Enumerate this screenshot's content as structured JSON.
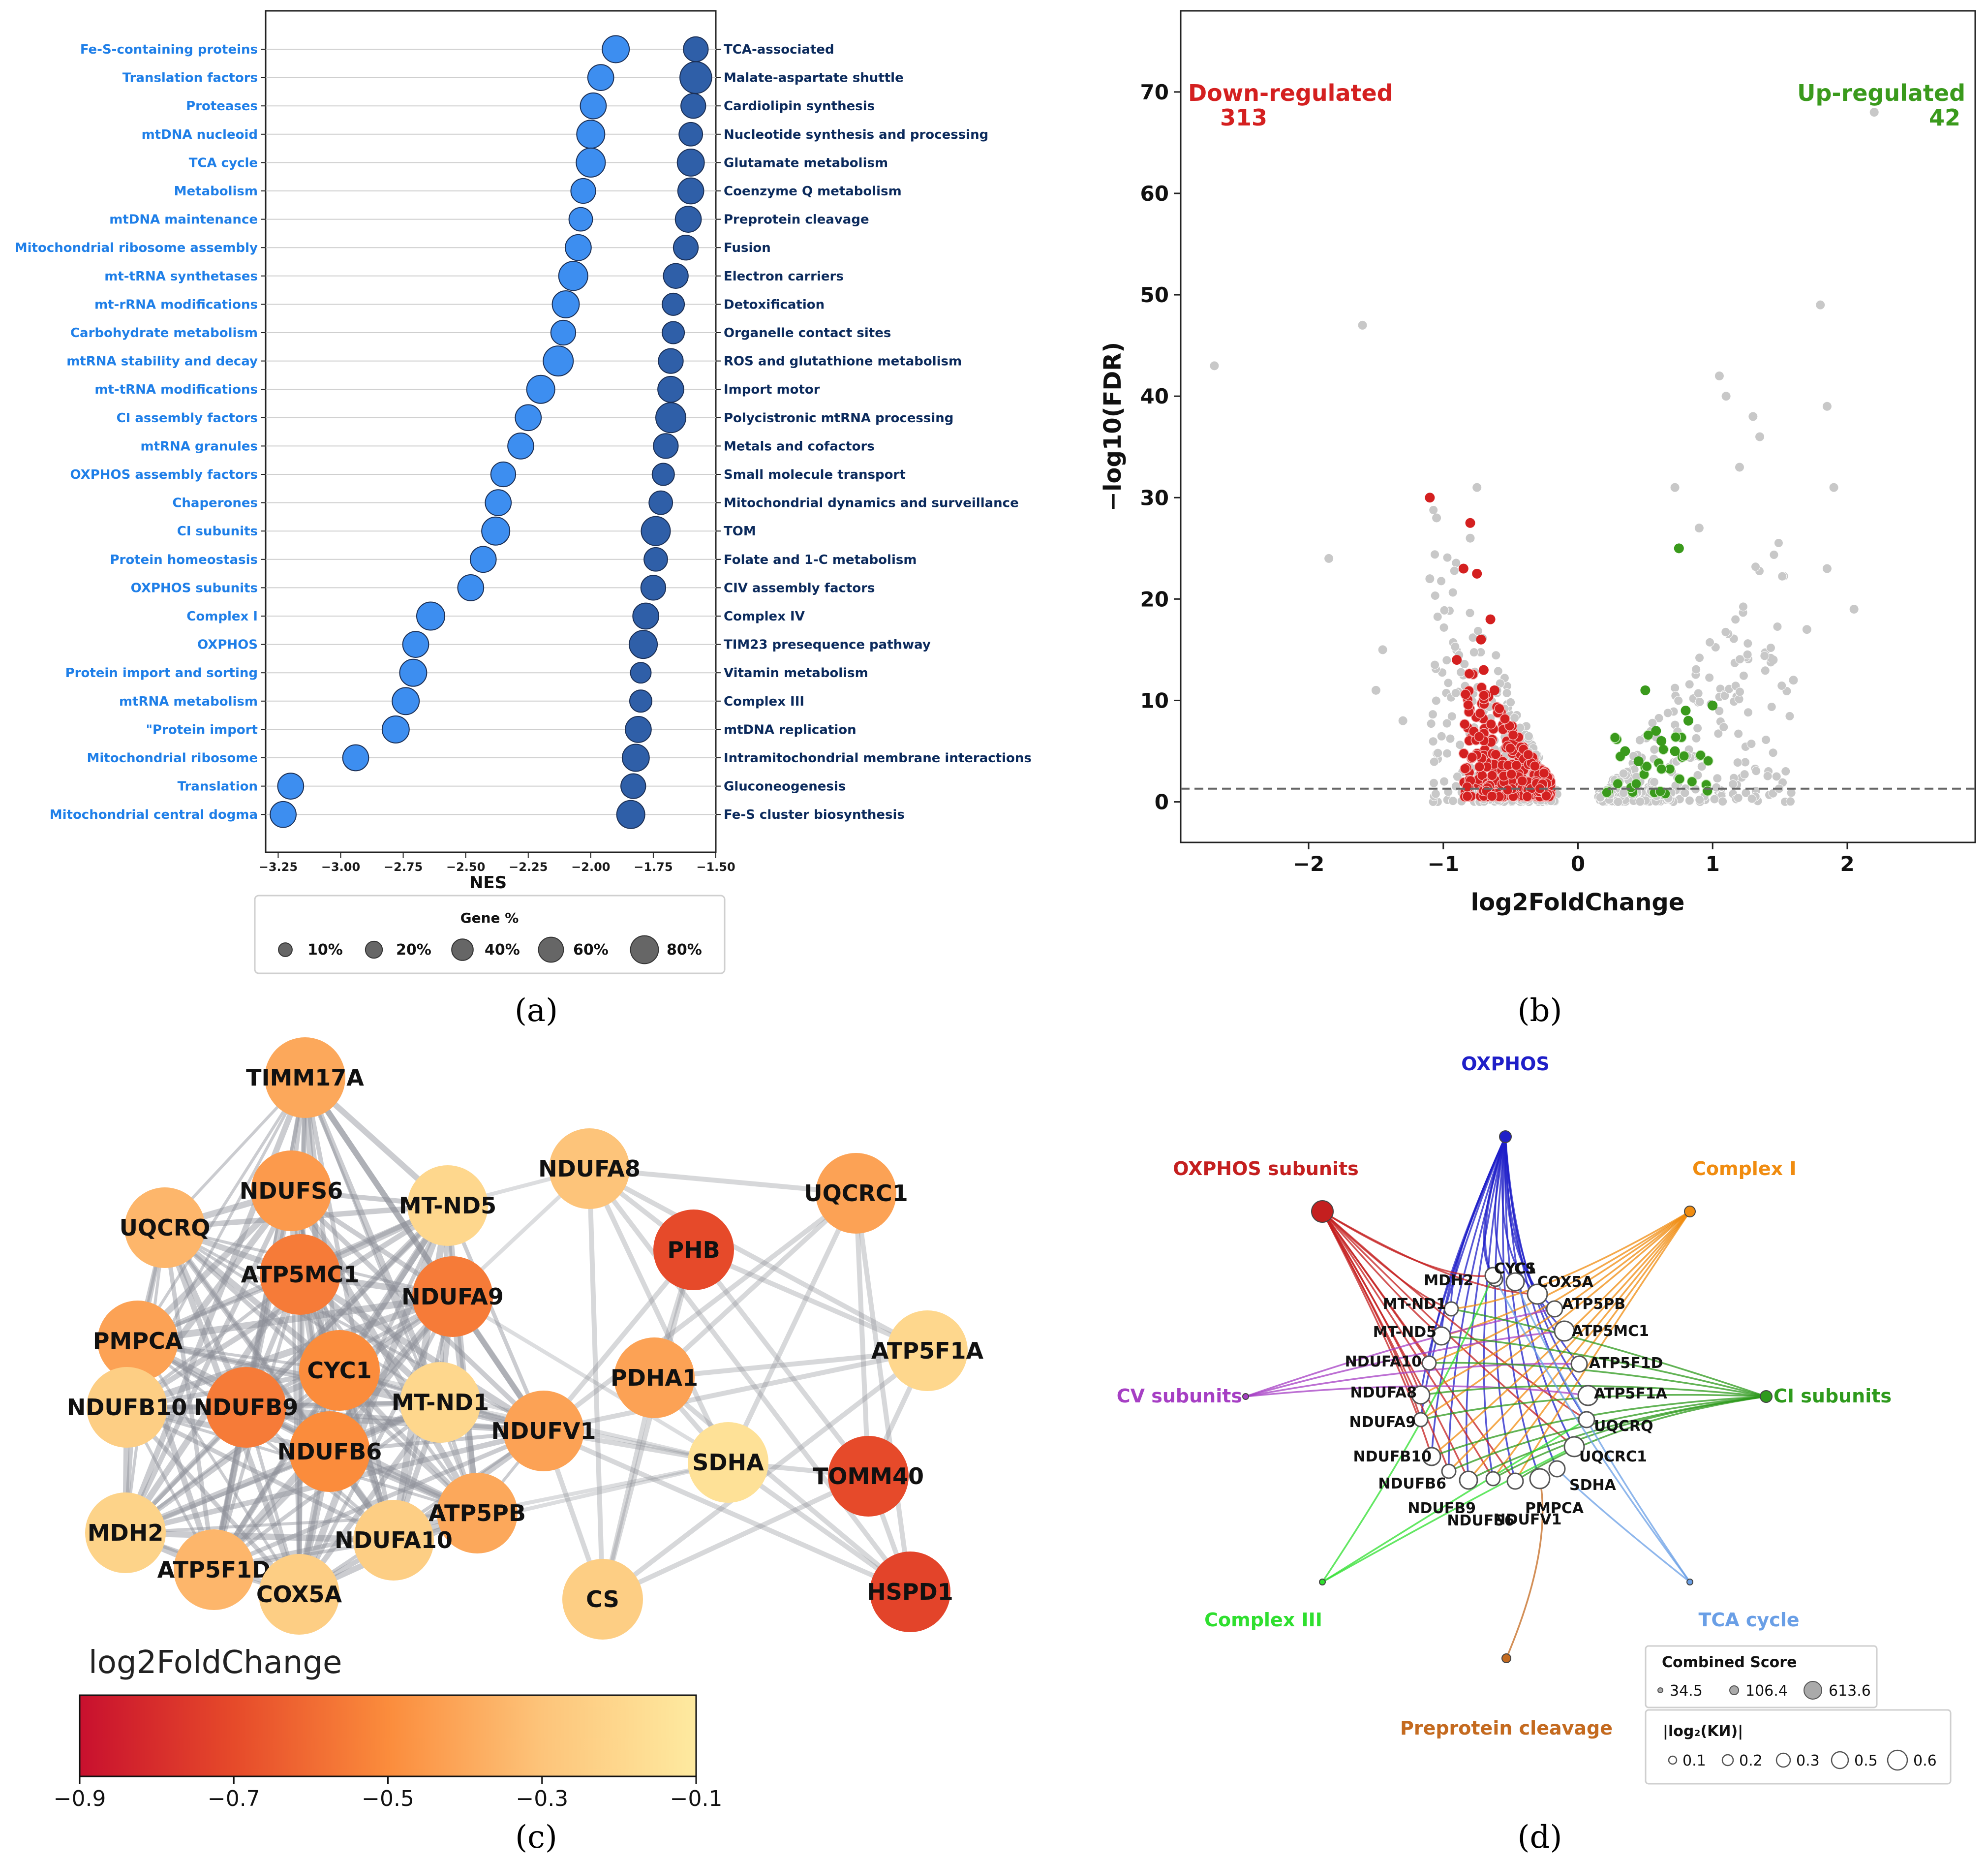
{
  "panel_labels": [
    "(a)",
    "(b)",
    "(c)",
    "(d)"
  ],
  "chart_data": [
    {
      "panel": "a",
      "type": "scatter",
      "xlabel": "NES",
      "xlim": [
        -3.3,
        -1.5
      ],
      "xticks": [
        "−3.25",
        "−3.00",
        "−2.75",
        "−2.50",
        "−2.25",
        "−2.00",
        "−1.75",
        "−1.50"
      ],
      "xtick_values": [
        -3.25,
        -3.0,
        -2.75,
        -2.5,
        -2.25,
        -2.0,
        -1.75,
        -1.5
      ],
      "size_legend": {
        "title": "Gene %",
        "labels": [
          "10%",
          "20%",
          "40%",
          "60%",
          "80%"
        ],
        "values": [
          10,
          20,
          40,
          60,
          80
        ]
      },
      "series": [
        {
          "side": "left",
          "color": "#3d8ef0",
          "labels": [
            "Fe-S-containing proteins",
            "Translation factors",
            "Proteases",
            "mtDNA nucleoid",
            "TCA cycle",
            "Metabolism",
            "mtDNA maintenance",
            "Mitochondrial ribosome assembly",
            "mt-tRNA synthetases",
            "mt-rRNA modifications",
            "Carbohydrate metabolism",
            "mtRNA stability and decay",
            "mt-tRNA modifications",
            "CI assembly factors",
            "mtRNA granules",
            "OXPHOS assembly factors",
            "Chaperones",
            "CI subunits",
            "Protein homeostasis",
            "OXPHOS subunits",
            "Complex I",
            "OXPHOS",
            "Protein import and sorting",
            "mtRNA metabolism",
            "\"Protein import",
            "Mitochondrial ribosome",
            "Translation",
            "Mitochondrial central dogma"
          ],
          "nes": [
            -1.9,
            -1.96,
            -1.99,
            -2.0,
            -2.0,
            -2.03,
            -2.04,
            -2.05,
            -2.07,
            -2.1,
            -2.11,
            -2.13,
            -2.2,
            -2.25,
            -2.28,
            -2.35,
            -2.37,
            -2.38,
            -2.43,
            -2.48,
            -2.64,
            -2.7,
            -2.71,
            -2.74,
            -2.78,
            -2.94,
            -3.2,
            -3.23
          ],
          "gene_pct": [
            45,
            40,
            40,
            50,
            55,
            35,
            30,
            40,
            55,
            45,
            35,
            60,
            50,
            40,
            40,
            35,
            40,
            50,
            40,
            40,
            50,
            40,
            45,
            45,
            45,
            40,
            40,
            40
          ]
        },
        {
          "side": "right",
          "color": "#2f5fa8",
          "labels": [
            "TCA-associated",
            "Malate-aspartate shuttle",
            "Cardiolipin synthesis",
            "Nucleotide synthesis and processing",
            "Glutamate metabolism",
            "Coenzyme Q metabolism",
            "Preprotein cleavage",
            "Fusion",
            "Electron carriers",
            "Detoxification",
            "Organelle contact sites",
            "ROS and glutathione metabolism",
            "Import motor",
            "Polycistronic mtRNA processing",
            "Metals and cofactors",
            "Small molecule transport",
            "Mitochondrial dynamics and surveillance",
            "TOM",
            "Folate and 1-C metabolism",
            "CIV assembly factors",
            "Complex IV",
            "TIM23 presequence pathway",
            "Vitamin metabolism",
            "Complex III",
            "mtDNA replication",
            "Intramitochondrial membrane interactions",
            "Gluconeogenesis",
            "Fe-S cluster biosynthesis"
          ],
          "nes": [
            -1.58,
            -1.58,
            -1.59,
            -1.6,
            -1.6,
            -1.6,
            -1.61,
            -1.62,
            -1.66,
            -1.67,
            -1.67,
            -1.68,
            -1.68,
            -1.68,
            -1.7,
            -1.71,
            -1.72,
            -1.74,
            -1.74,
            -1.75,
            -1.78,
            -1.79,
            -1.8,
            -1.8,
            -1.81,
            -1.82,
            -1.83,
            -1.84
          ],
          "gene_pct": [
            35,
            70,
            35,
            30,
            45,
            40,
            40,
            35,
            35,
            25,
            25,
            35,
            40,
            60,
            35,
            25,
            30,
            55,
            30,
            35,
            40,
            50,
            20,
            25,
            40,
            45,
            35,
            50
          ]
        }
      ]
    },
    {
      "panel": "b",
      "type": "scatter",
      "xlabel": "log2FoldChange",
      "ylabel": "−log10(FDR)",
      "xlim": [
        -2.95,
        2.95
      ],
      "ylim": [
        -4,
        78
      ],
      "xticks": [
        "−2",
        "−1",
        "0",
        "1",
        "2"
      ],
      "xtick_values": [
        -2,
        -1,
        0,
        1,
        2
      ],
      "yticks": [
        "0",
        "10",
        "20",
        "30",
        "40",
        "50",
        "60",
        "70"
      ],
      "ytick_values": [
        0,
        10,
        20,
        30,
        40,
        50,
        60,
        70
      ],
      "threshold_y": 1.3,
      "annotations": {
        "down_label": "Down-regulated",
        "down_count": "313",
        "up_label": "Up-regulated",
        "up_count": "42"
      },
      "colors": {
        "down": "#d42020",
        "up": "#3a9a1c",
        "ns": "#c8c8c8"
      },
      "grey_outliers": {
        "x": [
          -2.7,
          -1.6,
          -1.85,
          -0.75,
          -1.05,
          -1.1,
          -1.45,
          1.8,
          1.85,
          1.9,
          1.85,
          2.05,
          2.2,
          1.3,
          1.35,
          1.05,
          1.1,
          1.2,
          1.7,
          1.6,
          1.45,
          -1.5,
          -1.3,
          -0.8,
          0.72,
          0.9
        ],
        "y": [
          43,
          47,
          24,
          31,
          28,
          22,
          15,
          49,
          39,
          31,
          23,
          19,
          68,
          38,
          36,
          42,
          40,
          33,
          17,
          12,
          14,
          11,
          8,
          26,
          31,
          27
        ]
      },
      "red_highlights": {
        "x": [
          -1.1,
          -0.8,
          -0.85,
          -0.75,
          -0.65,
          -0.72,
          -0.9,
          -0.7,
          -0.62
        ],
        "y": [
          30,
          27.5,
          23,
          22.5,
          18,
          16,
          14,
          13,
          11
        ]
      },
      "green_highlights": {
        "x": [
          0.75,
          0.5,
          0.58,
          0.8,
          1.0,
          0.35,
          0.45,
          0.62,
          0.72,
          0.82
        ],
        "y": [
          25,
          11,
          7,
          9,
          9.5,
          5,
          4,
          6,
          5,
          8
        ]
      }
    }
  ],
  "network_c": {
    "colorbar_title": "log2FoldChange",
    "colorbar_ticks": [
      "−0.9",
      "−0.7",
      "−0.5",
      "−0.3",
      "−0.1"
    ],
    "colorbar_values": [
      -0.9,
      -0.7,
      -0.5,
      -0.3,
      -0.1
    ],
    "nodes": [
      {
        "label": "TIMM17A",
        "lfc": -0.4
      },
      {
        "label": "NDUFS6",
        "lfc": -0.45
      },
      {
        "label": "MT-ND5",
        "lfc": -0.2
      },
      {
        "label": "UQCRQ",
        "lfc": -0.35
      },
      {
        "label": "ATP5MC1",
        "lfc": -0.55
      },
      {
        "label": "NDUFA9",
        "lfc": -0.55
      },
      {
        "label": "PMPCA",
        "lfc": -0.42
      },
      {
        "label": "CYC1",
        "lfc": -0.5
      },
      {
        "label": "MT-ND1",
        "lfc": -0.2
      },
      {
        "label": "NDUFB10",
        "lfc": -0.25
      },
      {
        "label": "NDUFB9",
        "lfc": -0.55
      },
      {
        "label": "NDUFB6",
        "lfc": -0.5
      },
      {
        "label": "NDUFV1",
        "lfc": -0.42
      },
      {
        "label": "ATP5PB",
        "lfc": -0.4
      },
      {
        "label": "NDUFA10",
        "lfc": -0.25
      },
      {
        "label": "MDH2",
        "lfc": -0.22
      },
      {
        "label": "ATP5F1D",
        "lfc": -0.35
      },
      {
        "label": "COX5A",
        "lfc": -0.25
      },
      {
        "label": "NDUFA8",
        "lfc": -0.3
      },
      {
        "label": "PHB",
        "lfc": -0.7
      },
      {
        "label": "UQCRC1",
        "lfc": -0.42
      },
      {
        "label": "PDHA1",
        "lfc": -0.42
      },
      {
        "label": "ATP5F1A",
        "lfc": -0.2
      },
      {
        "label": "SDHA",
        "lfc": -0.15
      },
      {
        "label": "TOMM40",
        "lfc": -0.7
      },
      {
        "label": "CS",
        "lfc": -0.25
      },
      {
        "label": "HSPD1",
        "lfc": -0.72
      }
    ]
  },
  "network_d": {
    "terms": [
      {
        "label": "OXPHOS",
        "color": "#1f1fc8"
      },
      {
        "label": "OXPHOS subunits",
        "color": "#c41f1f"
      },
      {
        "label": "Complex I",
        "color": "#f08c10"
      },
      {
        "label": "CV subunits",
        "color": "#a63fc4"
      },
      {
        "label": "CI subunits",
        "color": "#2e9a1c"
      },
      {
        "label": "Complex III",
        "color": "#2fdf2f"
      },
      {
        "label": "TCA cycle",
        "color": "#6a9fe6"
      },
      {
        "label": "Preprotein cleavage",
        "color": "#c46a1f"
      }
    ],
    "genes": [
      "MDH2",
      "CYC1",
      "CS",
      "COX5A",
      "MT-ND1",
      "ATP5PB",
      "MT-ND5",
      "ATP5MC1",
      "NDUFA10",
      "ATP5F1D",
      "NDUFA8",
      "ATP5F1A",
      "NDUFA9",
      "UQCRQ",
      "NDUFB10",
      "UQCRC1",
      "NDUFB6",
      "SDHA",
      "NDUFB9",
      "PMPCA",
      "NDUFS6",
      "NDUFV1"
    ],
    "legend_combined": {
      "title": "Combined Score",
      "labels": [
        "34.5",
        "106.4",
        "613.6"
      ]
    },
    "legend_lfc": {
      "title": "|log₂(KИ)|",
      "labels": [
        "0.1",
        "0.2",
        "0.3",
        "0.5",
        "0.6"
      ]
    }
  }
}
